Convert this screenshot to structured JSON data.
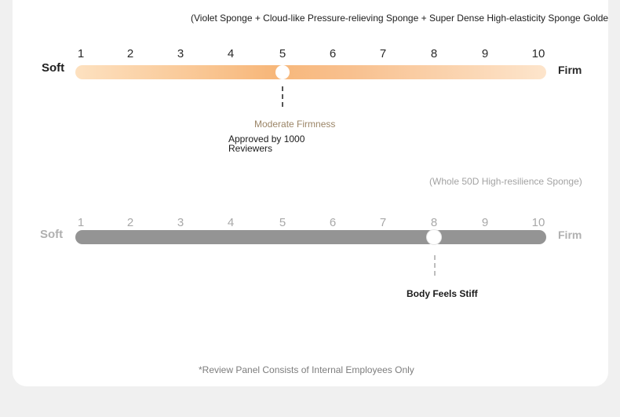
{
  "top_caption": "(Violet Sponge + Cloud-like Pressure-relieving Sponge + Super Dense High-elasticity Sponge Golden Re",
  "scale_numbers": [
    "1",
    "2",
    "3",
    "4",
    "5",
    "6",
    "7",
    "8",
    "9",
    "10"
  ],
  "scale_a": {
    "left_label": "Soft",
    "right_label": "Firm",
    "value": 5,
    "gradient": [
      "#fde1c0",
      "#f7b77a",
      "#fde5cc"
    ],
    "rating_label": "Moderate Firmness",
    "note": "Approved by 1000 Reviewers"
  },
  "scale_b": {
    "caption": "(Whole 50D High-resilience Sponge)",
    "left_label": "Soft",
    "right_label": "Firm",
    "value": 8,
    "track_color": "#949494",
    "rating_label": "Body Feels Stiff"
  },
  "footnote": "*Review Panel Consists of Internal Employees Only"
}
